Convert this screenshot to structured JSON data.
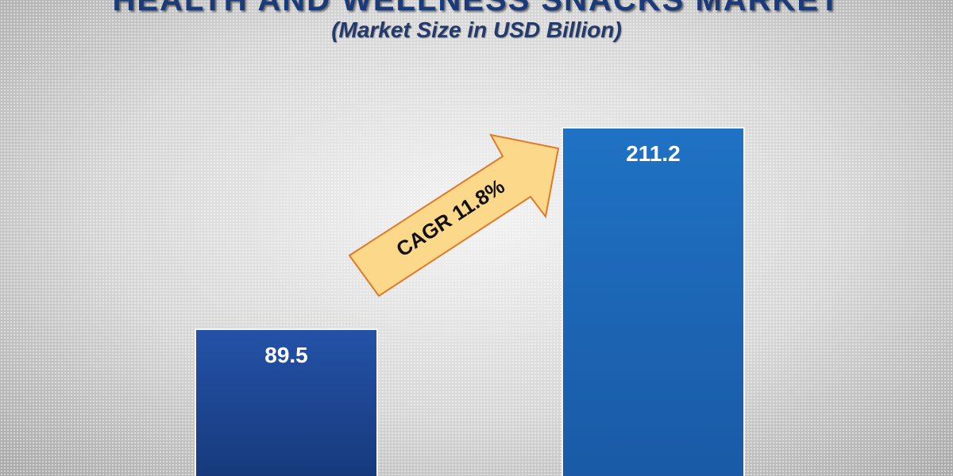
{
  "chart_data": {
    "type": "bar",
    "title": "HEALTH AND WELLNESS SNACKS MARKET",
    "subtitle": "(Market Size in USD Billion)",
    "categories": [
      "",
      ""
    ],
    "values": [
      89.5,
      211.2
    ],
    "data_labels": [
      "89.5",
      "211.2"
    ],
    "annotations": [
      {
        "text": "CAGR 11.8%",
        "type": "arrow"
      }
    ],
    "colors": {
      "bar1": "#1f4a9a",
      "bar2": "#1e6fc0",
      "arrow_fill": "#fcd98a",
      "arrow_border": "#e07a2a"
    },
    "grid": false,
    "legend": "none"
  }
}
